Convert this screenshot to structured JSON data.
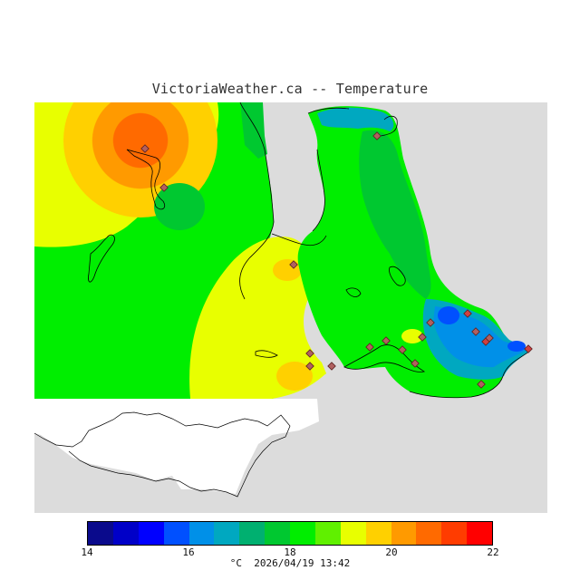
{
  "title": "VictoriaWeather.ca -- Temperature",
  "legend": {
    "min": 14,
    "max": 22,
    "ticks": [
      "14",
      "16",
      "18",
      "20",
      "22"
    ],
    "colors": [
      "#0a0a8c",
      "#0000c8",
      "#0000ff",
      "#0050ff",
      "#0090e8",
      "#00a8c0",
      "#00b070",
      "#00c830",
      "#00ee00",
      "#60f000",
      "#e8ff00",
      "#ffd000",
      "#ff9a00",
      "#ff6a00",
      "#ff3c00",
      "#ff0000"
    ]
  },
  "footer": {
    "unit": "°C",
    "timestamp": "2026/04/19 13:42"
  },
  "colors": {
    "no_data": "#dcdcdc",
    "land_outline": "#000000",
    "station_marker": "#b06060"
  }
}
